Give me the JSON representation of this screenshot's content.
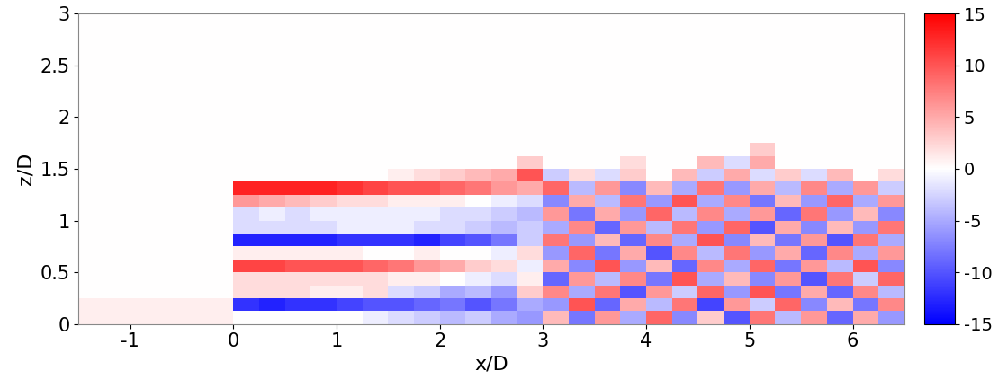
{
  "chart_data": {
    "type": "heatmap",
    "x_label": "x/D",
    "y_label": "z/D",
    "xlim": [
      -1.5,
      6.5
    ],
    "ylim": [
      0,
      3
    ],
    "xticks": [
      -1,
      0,
      1,
      2,
      3,
      4,
      5,
      6
    ],
    "yticks": [
      0,
      0.5,
      1,
      1.5,
      2,
      2.5,
      3
    ],
    "x_edges": [
      -1.5,
      -1.25,
      -1.0,
      -0.75,
      -0.5,
      -0.25,
      0,
      0.25,
      0.5,
      0.75,
      1.0,
      1.25,
      1.5,
      1.75,
      2.0,
      2.25,
      2.5,
      2.75,
      3.0,
      3.25,
      3.5,
      3.75,
      4.0,
      4.25,
      4.5,
      4.75,
      5.0,
      5.25,
      5.5,
      5.75,
      6.0,
      6.25,
      6.5
    ],
    "y_edges": [
      0,
      0.125,
      0.25,
      0.375,
      0.5,
      0.625,
      0.75,
      0.875,
      1.0,
      1.125,
      1.25,
      1.375,
      1.5,
      1.625,
      1.75,
      3
    ],
    "cells": [
      [
        1,
        1,
        1,
        1,
        1,
        1,
        0,
        0,
        0,
        0,
        0,
        -1,
        -2,
        -3,
        -4,
        -3,
        -5,
        -6,
        4,
        -8,
        6,
        -5,
        9,
        -7,
        3,
        -10,
        8,
        -4,
        6,
        -9,
        5,
        -6
      ],
      [
        1,
        1,
        1,
        1,
        1,
        1,
        -12,
        -13,
        -12,
        -12,
        -11,
        -10,
        -10,
        -9,
        -8,
        -10,
        -8,
        -5,
        -6,
        10,
        -9,
        5,
        -4,
        8,
        -11,
        6,
        -3,
        9,
        -7,
        4,
        -8,
        7
      ],
      [
        0,
        0,
        0,
        0,
        0,
        0,
        2,
        2,
        2,
        1,
        1,
        2,
        -2,
        -3,
        -5,
        -4,
        -6,
        3,
        7,
        -5,
        8,
        -10,
        6,
        -3,
        9,
        -6,
        10,
        -8,
        5,
        -9,
        7,
        -4
      ],
      [
        0,
        0,
        0,
        0,
        0,
        0,
        2,
        2,
        2,
        2,
        2,
        2,
        1,
        1,
        0,
        -1,
        -2,
        1,
        -9,
        6,
        -4,
        7,
        -8,
        10,
        -5,
        4,
        -7,
        6,
        -10,
        8,
        -3,
        9
      ],
      [
        0,
        0,
        0,
        0,
        0,
        0,
        11,
        11,
        10,
        10,
        10,
        9,
        8,
        6,
        5,
        3,
        2,
        -1,
        5,
        -7,
        10,
        -6,
        4,
        -9,
        7,
        -5,
        9,
        -8,
        6,
        -4,
        10,
        -7
      ],
      [
        0,
        0,
        0,
        0,
        0,
        0,
        1,
        1,
        1,
        1,
        1,
        0,
        0,
        1,
        0,
        0,
        -1,
        2,
        -6,
        9,
        -8,
        5,
        -10,
        7,
        -4,
        8,
        -6,
        5,
        -9,
        7,
        -5,
        6
      ],
      [
        0,
        0,
        0,
        0,
        0,
        0,
        -13,
        -13,
        -13,
        -13,
        -12,
        -12,
        -12,
        -13,
        -11,
        -10,
        -8,
        -3,
        8,
        -6,
        4,
        -9,
        7,
        -5,
        10,
        -7,
        4,
        -8,
        6,
        -10,
        8,
        -5
      ],
      [
        0,
        0,
        0,
        0,
        0,
        0,
        -2,
        -2,
        -2,
        -2,
        -1,
        -1,
        -1,
        -2,
        -2,
        -3,
        -4,
        -3,
        -5,
        7,
        -9,
        6,
        -4,
        8,
        -6,
        9,
        -10,
        5,
        -7,
        4,
        -6,
        8
      ],
      [
        0,
        0,
        0,
        0,
        0,
        0,
        -2,
        -1,
        -2,
        -1,
        -1,
        -1,
        -1,
        -1,
        -2,
        -2,
        -3,
        -4,
        6,
        -8,
        5,
        -6,
        9,
        -4,
        7,
        -5,
        6,
        -9,
        8,
        -6,
        4,
        -7
      ],
      [
        0,
        0,
        0,
        0,
        0,
        0,
        6,
        5,
        4,
        3,
        2,
        2,
        1,
        1,
        1,
        0,
        -1,
        -2,
        -7,
        5,
        -4,
        8,
        -6,
        10,
        -5,
        7,
        -8,
        4,
        -6,
        9,
        -5,
        6
      ],
      [
        0,
        0,
        0,
        0,
        0,
        0,
        13,
        13,
        13,
        13,
        12,
        11,
        10,
        10,
        9,
        8,
        6,
        5,
        9,
        -4,
        6,
        -7,
        4,
        -5,
        8,
        -6,
        5,
        -4,
        7,
        -5,
        6,
        -3
      ],
      [
        0,
        0,
        0,
        0,
        0,
        0,
        0,
        0,
        0,
        0,
        0,
        0,
        1,
        2,
        3,
        4,
        5,
        10,
        -3,
        2,
        -2,
        3,
        0,
        4,
        -3,
        5,
        -2,
        3,
        -2,
        4,
        0,
        2
      ],
      [
        0,
        0,
        0,
        0,
        0,
        0,
        0,
        0,
        0,
        0,
        0,
        0,
        0,
        0,
        0,
        0,
        0,
        3,
        0,
        0,
        0,
        2,
        0,
        0,
        4,
        -2,
        5,
        0,
        0,
        0,
        0,
        0
      ],
      [
        0,
        0,
        0,
        0,
        0,
        0,
        0,
        0,
        0,
        0,
        0,
        0,
        0,
        0,
        0,
        0,
        0,
        0,
        0,
        0,
        0,
        0,
        0,
        0,
        0,
        0,
        3,
        0,
        0,
        0,
        0,
        0
      ],
      [
        0,
        0,
        0,
        0,
        0,
        0,
        0,
        0,
        0,
        0,
        0,
        0,
        0,
        0,
        0,
        0,
        0,
        0,
        0,
        0,
        0,
        0,
        0,
        0,
        0,
        0,
        0,
        0,
        0,
        0,
        0,
        0
      ]
    ],
    "colorbar": {
      "range": [
        -15,
        15
      ],
      "ticks": [
        -15,
        -10,
        -5,
        0,
        5,
        10,
        15
      ]
    }
  }
}
